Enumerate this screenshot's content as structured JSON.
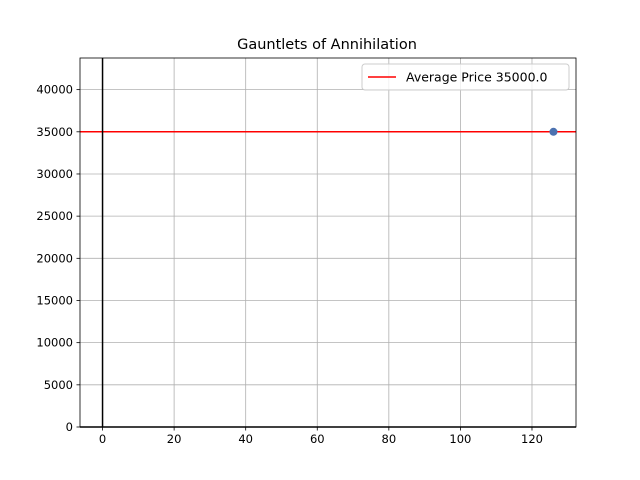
{
  "chart_data": {
    "type": "scatter",
    "title": "Gauntlets of Annihilation",
    "xlabel": "",
    "ylabel": "",
    "xlim": [
      -6.3,
      132.3
    ],
    "ylim": [
      0,
      43750
    ],
    "x_ticks": [
      0,
      20,
      40,
      60,
      80,
      100,
      120
    ],
    "y_ticks": [
      0,
      5000,
      10000,
      15000,
      20000,
      25000,
      30000,
      35000,
      40000
    ],
    "grid": true,
    "legend_position": "upper right",
    "series": [
      {
        "type": "scatter",
        "points": [
          {
            "x": 126,
            "y": 35000
          }
        ],
        "color": "#4c72b0"
      }
    ],
    "reference_lines": [
      {
        "orientation": "horizontal",
        "y": 35000,
        "label": "Average Price 35000.0",
        "color": "#ff0000"
      },
      {
        "orientation": "vertical",
        "x": 0,
        "label": "",
        "color": "#000000"
      },
      {
        "orientation": "horizontal",
        "y": 0,
        "label": "",
        "color": "#000000"
      }
    ],
    "legend": [
      {
        "label": "Average Price 35000.0",
        "color": "#ff0000"
      }
    ]
  }
}
